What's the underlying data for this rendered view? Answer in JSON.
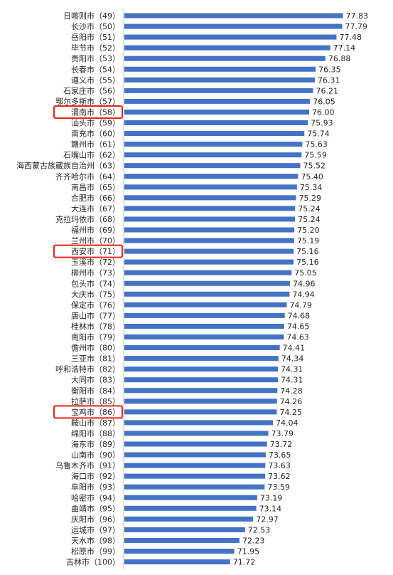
{
  "chart_data": {
    "type": "bar",
    "orientation": "horizontal",
    "categories": [
      "日喀则市（49）",
      "长沙市（50）",
      "岳阳市（51）",
      "毕节市（52）",
      "贵阳市（53）",
      "长春市（54）",
      "遵义市（55）",
      "石家庄市（56）",
      "鄂尔多斯市（57）",
      "渭南市（58）",
      "汕头市（59）",
      "南充市（60）",
      "赣州市（61）",
      "石嘴山市（62）",
      "海西蒙古族藏族自治州（63）",
      "齐齐哈尔市（64）",
      "南昌市（65）",
      "合肥市（66）",
      "大连市（67）",
      "克拉玛依市（68）",
      "福州市（69）",
      "兰州市（70）",
      "西安市（71）",
      "玉溪市（72）",
      "柳州市（73）",
      "包头市（74）",
      "大庆市（75）",
      "保定市（76）",
      "唐山市（77）",
      "桂林市（78）",
      "南阳市（79）",
      "儋州市（80）",
      "三亚市（81）",
      "呼和浩特市（82）",
      "大同市（83）",
      "衡阳市（84）",
      "拉萨市（85）",
      "宝鸡市（86）",
      "鞍山市（87）",
      "绵阳市（88）",
      "海东市（89）",
      "山南市（90）",
      "乌鲁木齐市（91）",
      "海口市（92）",
      "阜阳市（93）",
      "哈密市（94）",
      "曲靖市（95）",
      "庆阳市（96）",
      "运城市（97）",
      "天水市（98）",
      "松原市（99）",
      "吉林市（100）"
    ],
    "values": [
      77.83,
      77.79,
      77.48,
      77.14,
      76.88,
      76.35,
      76.31,
      76.21,
      76.05,
      76.0,
      75.93,
      75.74,
      75.63,
      75.59,
      75.52,
      75.4,
      75.34,
      75.29,
      75.24,
      75.24,
      75.2,
      75.19,
      75.16,
      75.16,
      75.05,
      74.96,
      74.94,
      74.79,
      74.68,
      74.65,
      74.63,
      74.41,
      74.34,
      74.31,
      74.31,
      74.28,
      74.26,
      74.25,
      74.04,
      73.79,
      73.72,
      73.65,
      73.63,
      73.62,
      73.59,
      73.19,
      73.14,
      72.97,
      72.53,
      72.23,
      71.95,
      71.72
    ],
    "value_labels": [
      "77.83",
      "77.79",
      "77.48",
      "77.14",
      "76.88",
      "76.35",
      "76.31",
      "76.21",
      "76.05",
      "76.00",
      "75.93",
      "75.74",
      "75.63",
      "75.59",
      "75.52",
      "75.40",
      "75.34",
      "75.29",
      "75.24",
      "75.24",
      "75.20",
      "75.19",
      "75.16",
      "75.16",
      "75.05",
      "74.96",
      "74.94",
      "74.79",
      "74.68",
      "74.65",
      "74.63",
      "74.41",
      "74.34",
      "74.31",
      "74.31",
      "74.28",
      "74.26",
      "74.25",
      "74.04",
      "73.79",
      "73.72",
      "73.65",
      "73.63",
      "73.62",
      "73.59",
      "73.19",
      "73.14",
      "72.97",
      "72.53",
      "72.23",
      "71.95",
      "71.72"
    ],
    "highlighted_categories": [
      "渭南市（58）",
      "西安市（71）",
      "宝鸡市（86）"
    ],
    "xlim": [
      66,
      78.5
    ],
    "grid": false,
    "legend": "none",
    "colors": {
      "bar": "#4472c4",
      "highlight": "#e8231d",
      "text": "#262626",
      "axis": "#bfbfbf"
    }
  }
}
